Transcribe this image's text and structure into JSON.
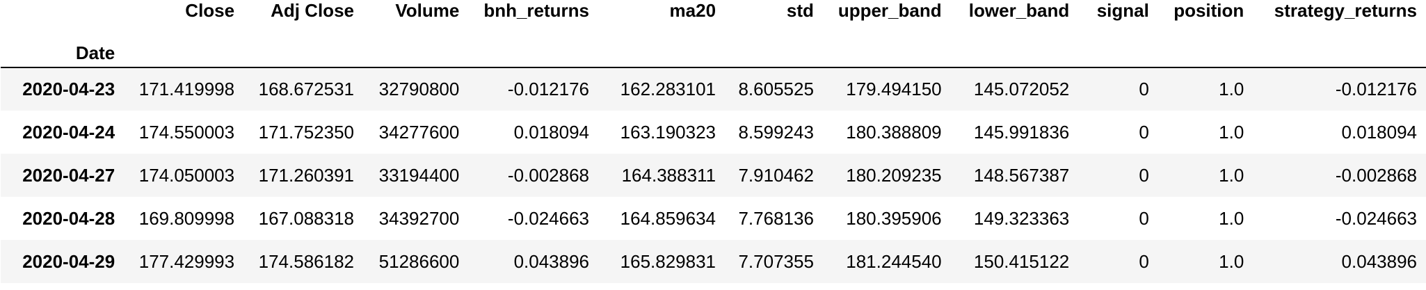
{
  "table": {
    "index_name": "Date",
    "columns": [
      "Close",
      "Adj Close",
      "Volume",
      "bnh_returns",
      "ma20",
      "std",
      "upper_band",
      "lower_band",
      "signal",
      "position",
      "strategy_returns"
    ],
    "rows": [
      {
        "date": "2020-04-23",
        "cells": [
          "171.419998",
          "168.672531",
          "32790800",
          "-0.012176",
          "162.283101",
          "8.605525",
          "179.494150",
          "145.072052",
          "0",
          "1.0",
          "-0.012176"
        ]
      },
      {
        "date": "2020-04-24",
        "cells": [
          "174.550003",
          "171.752350",
          "34277600",
          "0.018094",
          "163.190323",
          "8.599243",
          "180.388809",
          "145.991836",
          "0",
          "1.0",
          "0.018094"
        ]
      },
      {
        "date": "2020-04-27",
        "cells": [
          "174.050003",
          "171.260391",
          "33194400",
          "-0.002868",
          "164.388311",
          "7.910462",
          "180.209235",
          "148.567387",
          "0",
          "1.0",
          "-0.002868"
        ]
      },
      {
        "date": "2020-04-28",
        "cells": [
          "169.809998",
          "167.088318",
          "34392700",
          "-0.024663",
          "164.859634",
          "7.768136",
          "180.395906",
          "149.323363",
          "0",
          "1.0",
          "-0.024663"
        ]
      },
      {
        "date": "2020-04-29",
        "cells": [
          "177.429993",
          "174.586182",
          "51286600",
          "0.043896",
          "165.829831",
          "7.707355",
          "181.244540",
          "150.415122",
          "0",
          "1.0",
          "0.043896"
        ]
      }
    ]
  }
}
